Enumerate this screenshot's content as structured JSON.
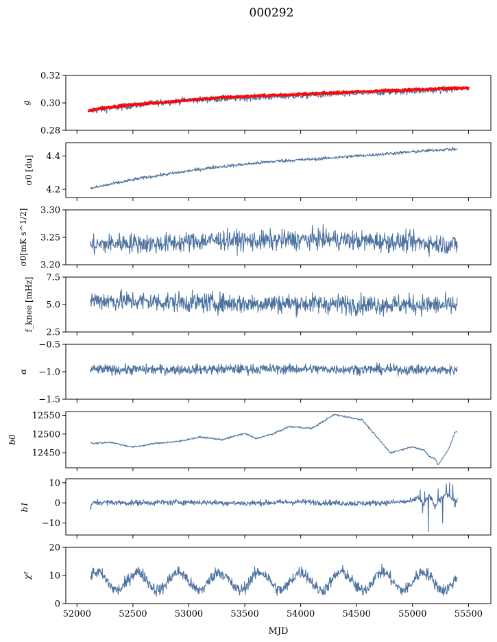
{
  "title": "000292",
  "x_axis": {
    "label": "MJD",
    "range": [
      51900,
      55700
    ],
    "ticks": [
      52000,
      52500,
      53000,
      53500,
      54000,
      54500,
      55000,
      55500
    ],
    "tick_labels": [
      "52000",
      "52500",
      "53000",
      "53500",
      "54000",
      "54500",
      "55000",
      "55500"
    ]
  },
  "colors": {
    "series": "#4c72a0",
    "model": "#ff0000",
    "axis": "#000000"
  },
  "chart_data": [
    {
      "type": "line",
      "id": "g",
      "ylabel": "g",
      "ylim": [
        0.28,
        0.32
      ],
      "yticks": [
        0.28,
        0.3,
        0.32
      ],
      "ytick_labels": [
        "0.28",
        "0.30",
        "0.32"
      ],
      "series": [
        {
          "name": "g",
          "color": "#4c72a0",
          "x": [
            52120,
            52200,
            52400,
            52700,
            53000,
            53300,
            53600,
            53900,
            54200,
            54500,
            54800,
            55100,
            55400
          ],
          "values": [
            0.294,
            0.295,
            0.297,
            0.3,
            0.302,
            0.303,
            0.304,
            0.305,
            0.306,
            0.307,
            0.308,
            0.309,
            0.31
          ],
          "noise": 0.0012
        },
        {
          "name": "model",
          "color": "#ff0000",
          "x": [
            52100,
            52200,
            52400,
            52700,
            53000,
            53300,
            53600,
            53900,
            54200,
            54500,
            54800,
            55100,
            55500
          ],
          "values": [
            0.294,
            0.296,
            0.298,
            0.3,
            0.302,
            0.304,
            0.305,
            0.306,
            0.307,
            0.308,
            0.309,
            0.31,
            0.311
          ],
          "noise": 0.0004
        }
      ]
    },
    {
      "type": "line",
      "id": "sigma0",
      "ylabel": "σ0 [du]",
      "ylim": [
        4.15,
        4.48
      ],
      "yticks": [
        4.2,
        4.4
      ],
      "ytick_labels": [
        "4.2",
        "4.4"
      ],
      "series": [
        {
          "name": "sigma0",
          "color": "#4c72a0",
          "x": [
            52120,
            52300,
            52600,
            52900,
            53200,
            53500,
            53800,
            54100,
            54400,
            54700,
            55000,
            55300,
            55400
          ],
          "values": [
            4.205,
            4.23,
            4.27,
            4.3,
            4.33,
            4.35,
            4.37,
            4.38,
            4.395,
            4.41,
            4.425,
            4.44,
            4.44
          ],
          "noise": 0.005
        }
      ]
    },
    {
      "type": "line",
      "id": "sigma0k",
      "ylabel": "σ0[mK s^1/2]",
      "ylim": [
        3.2,
        3.3
      ],
      "yticks": [
        3.2,
        3.25,
        3.3
      ],
      "ytick_labels": [
        "3.20",
        "3.25",
        "3.30"
      ],
      "series": [
        {
          "name": "sigma0 (mK)",
          "color": "#4c72a0",
          "x": [
            52120,
            52400,
            52700,
            53000,
            53300,
            53600,
            53900,
            54200,
            54500,
            54800,
            55100,
            55400
          ],
          "values": [
            3.235,
            3.24,
            3.238,
            3.242,
            3.245,
            3.243,
            3.245,
            3.247,
            3.244,
            3.242,
            3.24,
            3.236
          ],
          "noise": 0.009
        }
      ]
    },
    {
      "type": "line",
      "id": "fknee",
      "ylabel": "f_knee [mHz]",
      "ylim": [
        2.5,
        7.5
      ],
      "yticks": [
        2.5,
        5.0,
        7.5
      ],
      "ytick_labels": [
        "2.5",
        "5.0",
        "7.5"
      ],
      "series": [
        {
          "name": "fknee",
          "color": "#4c72a0",
          "x": [
            52120,
            52500,
            53000,
            53500,
            54000,
            54500,
            55000,
            55400
          ],
          "values": [
            5.4,
            5.3,
            5.2,
            5.1,
            5.1,
            5.0,
            5.0,
            4.9
          ],
          "noise": 0.45
        }
      ]
    },
    {
      "type": "line",
      "id": "alpha",
      "ylabel": "α",
      "ylim": [
        -1.5,
        -0.5
      ],
      "yticks": [
        -1.5,
        -1.0,
        -0.5
      ],
      "ytick_labels": [
        "−1.5",
        "−1.0",
        "−0.5"
      ],
      "series": [
        {
          "name": "alpha",
          "color": "#4c72a0",
          "x": [
            52120,
            52800,
            53500,
            54200,
            54900,
            55400
          ],
          "values": [
            -0.96,
            -0.96,
            -0.95,
            -0.95,
            -0.96,
            -0.97
          ],
          "noise": 0.045
        }
      ]
    },
    {
      "type": "line",
      "id": "b0",
      "ylabel": "b0",
      "ylim": [
        12410,
        12560
      ],
      "yticks": [
        12450,
        12500,
        12550
      ],
      "ytick_labels": [
        "12450",
        "12500",
        "12550"
      ],
      "series": [
        {
          "name": "b0",
          "color": "#4c72a0",
          "x": [
            52120,
            52150,
            52300,
            52500,
            52700,
            52900,
            53100,
            53300,
            53500,
            53600,
            53750,
            53900,
            54100,
            54300,
            54550,
            54800,
            54900,
            55000,
            55050,
            55100,
            55150,
            55200,
            55230,
            55280,
            55330,
            55380,
            55400
          ],
          "values": [
            12478,
            12475,
            12478,
            12465,
            12475,
            12480,
            12492,
            12485,
            12502,
            12488,
            12500,
            12520,
            12515,
            12552,
            12538,
            12450,
            12458,
            12467,
            12460,
            12458,
            12440,
            12435,
            12418,
            12440,
            12465,
            12505,
            12506
          ],
          "noise": 1.2
        }
      ]
    },
    {
      "type": "line",
      "id": "b1",
      "ylabel": "b1",
      "ylim": [
        -16,
        12
      ],
      "yticks": [
        -10,
        0,
        10
      ],
      "ytick_labels": [
        "−10",
        "0",
        "10"
      ],
      "series": [
        {
          "name": "b1",
          "color": "#4c72a0",
          "x": [
            52120,
            52150,
            52500,
            53000,
            53500,
            54000,
            54500,
            54800,
            55000,
            55050,
            55100,
            55150,
            55200,
            55300,
            55400
          ],
          "values": [
            -2.5,
            0.3,
            0.0,
            0.4,
            -0.2,
            0.5,
            -0.3,
            0.2,
            0.8,
            3.0,
            -1.0,
            4.0,
            -2.0,
            5.0,
            0.5
          ],
          "noise": 0.7,
          "spikes": [
            [
              55070,
              6.5
            ],
            [
              55090,
              -5
            ],
            [
              55110,
              5.5
            ],
            [
              55140,
              -14.5
            ],
            [
              55230,
              7
            ],
            [
              55270,
              -10
            ],
            [
              55300,
              9.5
            ],
            [
              55330,
              10
            ],
            [
              55360,
              9
            ],
            [
              55380,
              -2
            ]
          ]
        }
      ]
    },
    {
      "type": "line",
      "id": "chi2",
      "ylabel": "χ²",
      "ylim": [
        0,
        20
      ],
      "yticks": [
        0,
        10,
        20
      ],
      "ytick_labels": [
        "0",
        "10",
        "20"
      ],
      "series": [
        {
          "name": "chi2",
          "color": "#4c72a0",
          "x": [
            52120,
            55400
          ],
          "values": [
            8,
            9
          ],
          "periodic": {
            "mean": 8,
            "amplitude": 3.2,
            "period_days": 365
          },
          "noise": 1.1
        }
      ]
    }
  ]
}
